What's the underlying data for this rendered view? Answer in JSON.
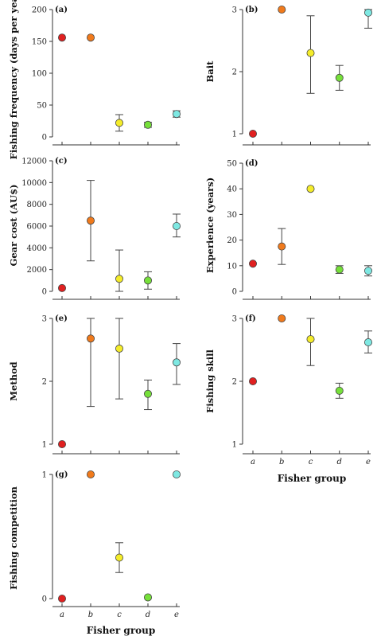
{
  "colors": {
    "a": "#e02020",
    "b": "#f07a1c",
    "c": "#f4ec2a",
    "d": "#76e03a",
    "e": "#7ee8e2"
  },
  "xaxis_title": "Fisher group",
  "chart_data": [
    {
      "type": "scatter",
      "panel": "(a)",
      "ylabel": "Fishing frequency (days per year)",
      "categories": [
        "a",
        "b",
        "c",
        "d",
        "e"
      ],
      "show_x_labels": false,
      "ylim": [
        0,
        200
      ],
      "yticks": [
        0,
        50,
        100,
        150,
        200
      ],
      "ytick_labels": [
        "0",
        "50",
        "100",
        "150",
        "200"
      ],
      "values": [
        156,
        156,
        22,
        19,
        36
      ],
      "err_low": [
        null,
        null,
        9,
        15,
        31
      ],
      "err_high": [
        null,
        null,
        35,
        23,
        41
      ]
    },
    {
      "type": "scatter",
      "panel": "(b)",
      "ylabel": "Bait",
      "categories": [
        "a",
        "b",
        "c",
        "d",
        "e"
      ],
      "show_x_labels": false,
      "ylim": [
        1,
        3
      ],
      "yticks": [
        1,
        2,
        3
      ],
      "ytick_labels": [
        "1",
        "2",
        "3"
      ],
      "values": [
        1.0,
        3.0,
        2.3,
        1.9,
        2.95
      ],
      "err_low": [
        null,
        null,
        1.65,
        1.7,
        2.7
      ],
      "err_high": [
        null,
        null,
        2.9,
        2.1,
        3.0
      ]
    },
    {
      "type": "scatter",
      "panel": "(c)",
      "ylabel": "Gear cost (AU$)",
      "categories": [
        "a",
        "b",
        "c",
        "d",
        "e"
      ],
      "show_x_labels": false,
      "ylim": [
        0,
        12000
      ],
      "yticks": [
        0,
        2000,
        4000,
        6000,
        8000,
        10000,
        12000
      ],
      "ytick_labels": [
        "0",
        "2000",
        "4000",
        "6000",
        "8000",
        "10000",
        "12000"
      ],
      "values": [
        300,
        6500,
        1150,
        1000,
        6000
      ],
      "err_low": [
        null,
        2800,
        0,
        200,
        5000
      ],
      "err_high": [
        null,
        10200,
        3800,
        1800,
        7100
      ]
    },
    {
      "type": "scatter",
      "panel": "(d)",
      "ylabel": "Experience (years)",
      "categories": [
        "a",
        "b",
        "c",
        "d",
        "e"
      ],
      "show_x_labels": false,
      "ylim": [
        0,
        50
      ],
      "yticks": [
        0,
        10,
        20,
        30,
        40,
        50
      ],
      "ytick_labels": [
        "0",
        "10",
        "20",
        "30",
        "40",
        "50"
      ],
      "values": [
        10.8,
        17.5,
        40,
        8.5,
        8.0
      ],
      "err_low": [
        null,
        10.5,
        null,
        7.0,
        6.0
      ],
      "err_high": [
        null,
        24.5,
        null,
        10.0,
        10.0
      ]
    },
    {
      "type": "scatter",
      "panel": "(e)",
      "ylabel": "Method",
      "categories": [
        "a",
        "b",
        "c",
        "d",
        "e"
      ],
      "show_x_labels": false,
      "ylim": [
        1,
        3
      ],
      "yticks": [
        1,
        2,
        3
      ],
      "ytick_labels": [
        "1",
        "2",
        "3"
      ],
      "values": [
        1.0,
        2.68,
        2.52,
        1.8,
        2.3
      ],
      "err_low": [
        null,
        1.6,
        1.72,
        1.55,
        1.95
      ],
      "err_high": [
        null,
        3.0,
        3.0,
        2.02,
        2.6
      ]
    },
    {
      "type": "scatter",
      "panel": "(f)",
      "ylabel": "Fishing skill",
      "categories": [
        "a",
        "b",
        "c",
        "d",
        "e"
      ],
      "show_x_labels": true,
      "xlabel": "Fisher group",
      "ylim": [
        1,
        3
      ],
      "yticks": [
        1,
        2,
        3
      ],
      "ytick_labels": [
        "1",
        "2",
        "3"
      ],
      "values": [
        2.0,
        3.0,
        2.67,
        1.85,
        2.62
      ],
      "err_low": [
        null,
        null,
        2.25,
        1.73,
        2.45
      ],
      "err_high": [
        null,
        null,
        3.0,
        1.97,
        2.8
      ]
    },
    {
      "type": "scatter",
      "panel": "(g)",
      "ylabel": "Fishing competition",
      "categories": [
        "a",
        "b",
        "c",
        "d",
        "e"
      ],
      "show_x_labels": true,
      "xlabel": "Fisher group",
      "ylim": [
        0,
        1
      ],
      "yticks": [
        0,
        1
      ],
      "ytick_labels": [
        "0",
        "1"
      ],
      "values": [
        0.0,
        1.0,
        0.33,
        0.01,
        1.0
      ],
      "err_low": [
        null,
        null,
        0.21,
        null,
        null
      ],
      "err_high": [
        null,
        null,
        0.45,
        null,
        null
      ]
    }
  ]
}
